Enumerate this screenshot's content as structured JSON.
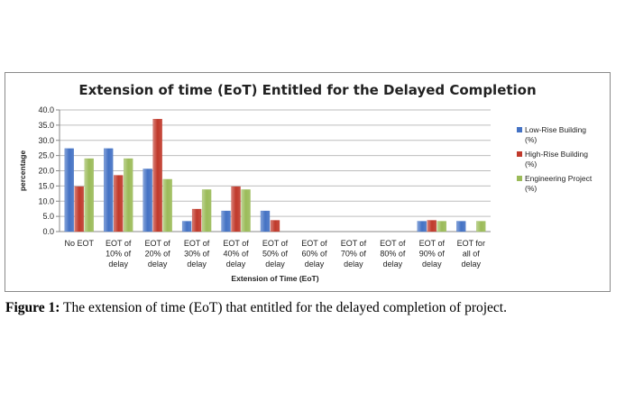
{
  "chart_data": {
    "type": "bar",
    "title": "Extension of time (EoT) Entitled for the Delayed Completion",
    "xlabel": "Extension of Time (EoT)",
    "ylabel": "percentage",
    "ylim": [
      0,
      40
    ],
    "yticks": [
      "0.0",
      "5.0",
      "10.0",
      "15.0",
      "20.0",
      "25.0",
      "30.0",
      "35.0",
      "40.0"
    ],
    "grid": true,
    "legend_position": "right",
    "categories": [
      [
        "No EOT"
      ],
      [
        "EOT of",
        "10% of",
        "delay"
      ],
      [
        "EOT of",
        "20% of",
        "delay"
      ],
      [
        "EOT of",
        "30% of",
        "delay"
      ],
      [
        "EOT of",
        "40% of",
        "delay"
      ],
      [
        "EOT of",
        "50% of",
        "delay"
      ],
      [
        "EOT of",
        "60% of",
        "delay"
      ],
      [
        "EOT of",
        "70% of",
        "delay"
      ],
      [
        "EOT of",
        "80% of",
        "delay"
      ],
      [
        "EOT of",
        "90% of",
        "delay"
      ],
      [
        "EOT for",
        "all of",
        "delay"
      ]
    ],
    "series": [
      {
        "name": [
          "Low-Rise Building",
          "(%)"
        ],
        "color": "#4472C4",
        "values": [
          27.3,
          27.3,
          20.6,
          3.4,
          6.8,
          6.8,
          0,
          0,
          0,
          3.4,
          3.4
        ]
      },
      {
        "name": [
          "High-Rise Building",
          "(%)"
        ],
        "color": "#C0392B",
        "values": [
          14.8,
          18.5,
          37.0,
          7.4,
          14.8,
          3.7,
          0,
          0,
          0,
          3.7,
          0
        ]
      },
      {
        "name": [
          "Engineering Project",
          "(%)"
        ],
        "color": "#9BBB59",
        "values": [
          24.0,
          24.0,
          17.2,
          13.8,
          13.8,
          0,
          0,
          0,
          0,
          3.4,
          3.4
        ]
      }
    ]
  },
  "caption": {
    "label": "Figure 1:",
    "text": " The extension of time (EoT) that entitled for the delayed completion of project."
  }
}
